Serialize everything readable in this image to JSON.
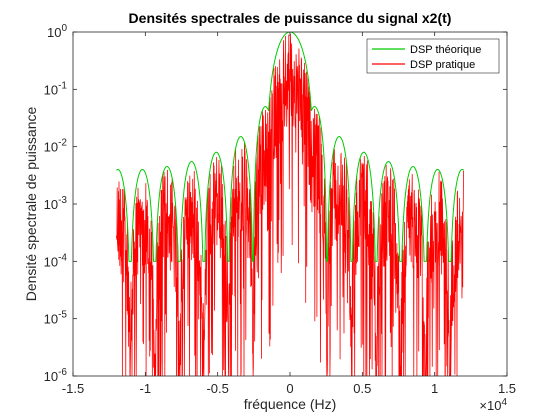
{
  "chart_data": {
    "type": "line",
    "title": "Densités spectrales de puissance du signal x2(t)",
    "xlabel": "fréquence (Hz)",
    "ylabel": "Densité spectrale de puissance",
    "x_exponent": {
      "base": "×10",
      "power": "4"
    },
    "xlim": [
      -15000,
      15000
    ],
    "ylim": [
      1e-06,
      1
    ],
    "yscale": "log",
    "grid": false,
    "legend_position": "top-right",
    "x_ticks": [
      {
        "value": -15000,
        "label": "-1.5"
      },
      {
        "value": -10000,
        "label": "-1"
      },
      {
        "value": -5000,
        "label": "-0.5"
      },
      {
        "value": 0,
        "label": "0"
      },
      {
        "value": 5000,
        "label": "0.5"
      },
      {
        "value": 10000,
        "label": "1"
      },
      {
        "value": 15000,
        "label": "1.5"
      }
    ],
    "y_ticks": [
      {
        "value": 1e-06,
        "base": "10",
        "exp": "-6"
      },
      {
        "value": 1e-05,
        "base": "10",
        "exp": "-5"
      },
      {
        "value": 0.0001,
        "base": "10",
        "exp": "-4"
      },
      {
        "value": 0.001,
        "base": "10",
        "exp": "-3"
      },
      {
        "value": 0.01,
        "base": "10",
        "exp": "-2"
      },
      {
        "value": 0.1,
        "base": "10",
        "exp": "-1"
      },
      {
        "value": 1,
        "base": "10",
        "exp": "0"
      }
    ],
    "series": [
      {
        "name": "DSP théorique",
        "color": "#00cc00",
        "x_range": [
          -12000,
          12000
        ],
        "lobe_width_hz": 1700,
        "lobe_peaks": [
          {
            "x": -11900,
            "y": 0.004
          },
          {
            "x": -10200,
            "y": 0.004
          },
          {
            "x": -8500,
            "y": 0.0045
          },
          {
            "x": -6800,
            "y": 0.0055
          },
          {
            "x": -5100,
            "y": 0.008
          },
          {
            "x": -3400,
            "y": 0.015
          },
          {
            "x": -1700,
            "y": 0.05
          },
          {
            "x": 0,
            "y": 1.0
          },
          {
            "x": 1700,
            "y": 0.05
          },
          {
            "x": 3400,
            "y": 0.015
          },
          {
            "x": 5100,
            "y": 0.008
          },
          {
            "x": 6800,
            "y": 0.0055
          },
          {
            "x": 8500,
            "y": 0.0045
          },
          {
            "x": 10200,
            "y": 0.004
          },
          {
            "x": 11900,
            "y": 0.004
          }
        ]
      },
      {
        "name": "DSP pratique",
        "color": "#ff0000",
        "x_range": [
          -12000,
          12000
        ],
        "min_value": 1e-06,
        "description_of_shape": ""
      }
    ]
  }
}
